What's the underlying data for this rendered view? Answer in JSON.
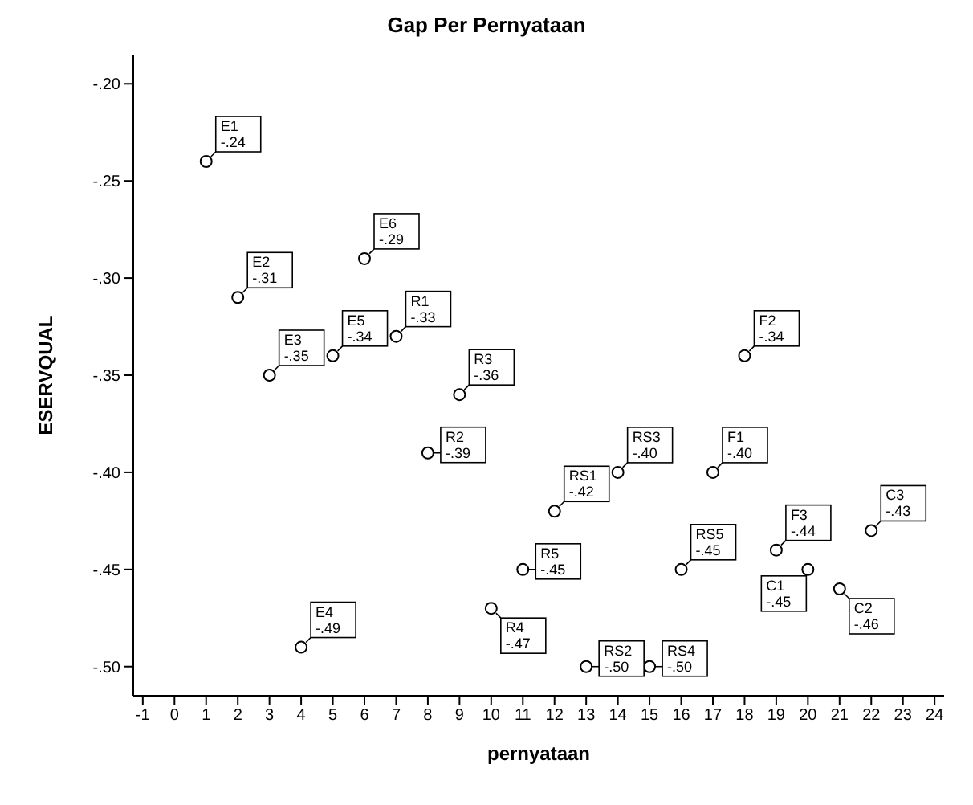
{
  "chart_data": {
    "type": "scatter",
    "title": "Gap Per Pernyataan",
    "xlabel": "pernyataan",
    "ylabel": "ESERVQUAL",
    "x": [
      1,
      2,
      3,
      4,
      5,
      6,
      7,
      8,
      9,
      10,
      11,
      12,
      13,
      14,
      15,
      16,
      17,
      18,
      19,
      20,
      21,
      22
    ],
    "values": [
      -0.24,
      -0.31,
      -0.35,
      -0.49,
      -0.34,
      -0.29,
      -0.33,
      -0.39,
      -0.36,
      -0.47,
      -0.45,
      -0.42,
      -0.5,
      -0.4,
      -0.5,
      -0.45,
      -0.4,
      -0.34,
      -0.44,
      -0.45,
      -0.46,
      -0.43
    ],
    "value_labels": [
      "-.24",
      "-.31",
      "-.35",
      "-.49",
      "-.34",
      "-.29",
      "-.33",
      "-.39",
      "-.36",
      "-.47",
      "-.45",
      "-.42",
      "-.50",
      "-.40",
      "-.50",
      "-.45",
      "-.40",
      "-.34",
      "-.44",
      "-.45",
      "-.46",
      "-.43"
    ],
    "annotations": [
      {
        "text": "E1",
        "x": 1,
        "y": -0.24
      },
      {
        "text": "E2",
        "x": 2,
        "y": -0.31
      },
      {
        "text": "E3",
        "x": 3,
        "y": -0.35
      },
      {
        "text": "E4",
        "x": 4,
        "y": -0.49
      },
      {
        "text": "E5",
        "x": 5,
        "y": -0.34
      },
      {
        "text": "E6",
        "x": 6,
        "y": -0.29
      },
      {
        "text": "R1",
        "x": 7,
        "y": -0.33
      },
      {
        "text": "R2",
        "x": 8,
        "y": -0.39
      },
      {
        "text": "R3",
        "x": 9,
        "y": -0.36
      },
      {
        "text": "R4",
        "x": 10,
        "y": -0.47
      },
      {
        "text": "R5",
        "x": 11,
        "y": -0.45
      },
      {
        "text": "RS1",
        "x": 12,
        "y": -0.42
      },
      {
        "text": "RS2",
        "x": 13,
        "y": -0.5
      },
      {
        "text": "RS3",
        "x": 14,
        "y": -0.4
      },
      {
        "text": "RS4",
        "x": 15,
        "y": -0.5
      },
      {
        "text": "RS5",
        "x": 16,
        "y": -0.45
      },
      {
        "text": "F1",
        "x": 17,
        "y": -0.4
      },
      {
        "text": "F2",
        "x": 18,
        "y": -0.34
      },
      {
        "text": "F3",
        "x": 19,
        "y": -0.44
      },
      {
        "text": "C1",
        "x": 20,
        "y": -0.45
      },
      {
        "text": "C2",
        "x": 21,
        "y": -0.46
      },
      {
        "text": "C3",
        "x": 22,
        "y": -0.43
      }
    ],
    "color": "#000000",
    "marker": "circle",
    "grid": false,
    "legend": false,
    "xlim": [
      -1.3,
      24.3
    ],
    "xticks": [
      -1,
      0,
      1,
      2,
      3,
      4,
      5,
      6,
      7,
      8,
      9,
      10,
      11,
      12,
      13,
      14,
      15,
      16,
      17,
      18,
      19,
      20,
      21,
      22,
      23,
      24
    ],
    "ylim": [
      -0.515,
      -0.185
    ],
    "yticks": [
      {
        "value": -0.2,
        "label": "-.20"
      },
      {
        "value": -0.25,
        "label": "-.25"
      },
      {
        "value": -0.3,
        "label": "-.30"
      },
      {
        "value": -0.35,
        "label": "-.35"
      },
      {
        "value": -0.4,
        "label": "-.40"
      },
      {
        "value": -0.45,
        "label": "-.45"
      },
      {
        "value": -0.5,
        "label": "-.50"
      }
    ]
  }
}
